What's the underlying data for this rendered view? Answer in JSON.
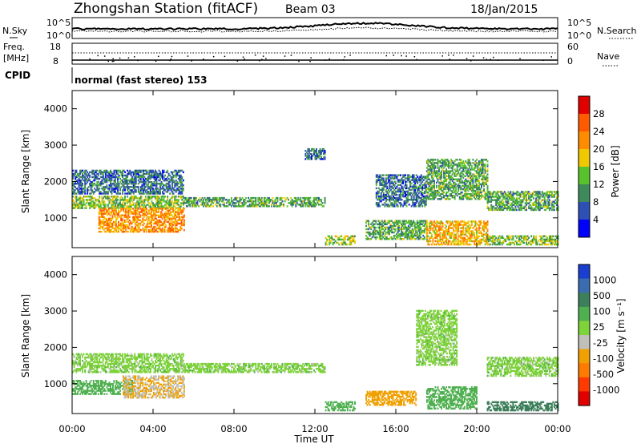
{
  "header": {
    "station": "Zhongshan Station (fitACF)",
    "beam": "Beam 03",
    "date": "18/Jan/2015",
    "cpid_label": "CPID",
    "cpid_value": "normal (fast stereo) 153"
  },
  "strip_labels": {
    "nsky": "N.Sky",
    "nsearch": "N.Search",
    "freq_1": "Freq.",
    "freq_2": "[MHz]",
    "nave": "Nave",
    "nsky_top": "10^5",
    "nsky_bottom": "10^0",
    "nsearch_top": "10^5",
    "nsearch_bottom": "10^0",
    "freq_top": "18",
    "freq_bottom": "8",
    "nave_top": "60",
    "nave_bottom": "0"
  },
  "x_axis": {
    "label": "Time UT",
    "ticks": [
      "00:00",
      "04:00",
      "08:00",
      "12:00",
      "16:00",
      "20:00",
      "00:00"
    ]
  },
  "y_axis": {
    "label": "Slant Range [km]",
    "ticks": [
      "1000",
      "2000",
      "3000",
      "4000"
    ]
  },
  "power_colorbar": {
    "label": "Power [dB]",
    "ticks": [
      "4",
      "8",
      "12",
      "16",
      "20",
      "24",
      "28"
    ],
    "colors": [
      "#0000ff",
      "#2e4fb4",
      "#3f8a5a",
      "#58c22c",
      "#f0c800",
      "#ff8c00",
      "#ff5a00",
      "#e00000"
    ]
  },
  "velocity_colorbar": {
    "label": "Velocity [m s⁻¹]",
    "ticks": [
      "1000",
      "500",
      "100",
      "25",
      "-25",
      "-100",
      "-500",
      "-1000"
    ],
    "colors": [
      "#1a3fd0",
      "#3a6cb0",
      "#3c7f5a",
      "#4fb050",
      "#7ed23a",
      "#c0c0b8",
      "#f0a000",
      "#ff7a00",
      "#ff3a00",
      "#e00000"
    ]
  },
  "chart_data": [
    {
      "type": "heatmap",
      "title": "Power [dB]",
      "xlabel": "Time UT",
      "ylabel": "Slant Range [km]",
      "xlim": [
        "00:00",
        "24:00"
      ],
      "ylim": [
        180,
        4500
      ],
      "bands": [
        {
          "t0": 0.0,
          "t1": 5.5,
          "r0": 1250,
          "r1": 1600,
          "level": 12
        },
        {
          "t0": 0.0,
          "t1": 5.5,
          "r0": 1650,
          "r1": 2300,
          "level": 6
        },
        {
          "t0": 1.3,
          "t1": 5.5,
          "r0": 600,
          "r1": 1250,
          "level": 20
        },
        {
          "t0": 5.5,
          "t1": 12.5,
          "r0": 1300,
          "r1": 1550,
          "level": 10
        },
        {
          "t0": 11.5,
          "t1": 12.5,
          "r0": 2600,
          "r1": 2900,
          "level": 6
        },
        {
          "t0": 12.5,
          "t1": 14.0,
          "r0": 250,
          "r1": 500,
          "level": 14
        },
        {
          "t0": 14.5,
          "t1": 17.5,
          "r0": 400,
          "r1": 900,
          "level": 10
        },
        {
          "t0": 15.0,
          "t1": 17.5,
          "r0": 1300,
          "r1": 2200,
          "level": 6
        },
        {
          "t0": 17.5,
          "t1": 20.5,
          "r0": 250,
          "r1": 900,
          "level": 18
        },
        {
          "t0": 17.5,
          "t1": 20.5,
          "r0": 1500,
          "r1": 2600,
          "level": 10
        },
        {
          "t0": 20.5,
          "t1": 24.0,
          "r0": 1200,
          "r1": 1700,
          "level": 10
        },
        {
          "t0": 20.5,
          "t1": 24.0,
          "r0": 250,
          "r1": 500,
          "level": 12
        }
      ]
    },
    {
      "type": "heatmap",
      "title": "Velocity [m s⁻¹]",
      "xlabel": "Time UT",
      "ylabel": "Slant Range [km]",
      "xlim": [
        "00:00",
        "24:00"
      ],
      "ylim": [
        180,
        4500
      ],
      "bands": [
        {
          "t0": 0.0,
          "t1": 5.5,
          "r0": 1300,
          "r1": 1800,
          "level": 0
        },
        {
          "t0": 0.0,
          "t1": 3.0,
          "r0": 700,
          "r1": 1100,
          "level": 60
        },
        {
          "t0": 2.5,
          "t1": 5.5,
          "r0": 600,
          "r1": 1200,
          "level": -100
        },
        {
          "t0": 5.5,
          "t1": 12.5,
          "r0": 1300,
          "r1": 1550,
          "level": 0
        },
        {
          "t0": 12.5,
          "t1": 14.0,
          "r0": 250,
          "r1": 500,
          "level": 60
        },
        {
          "t0": 14.5,
          "t1": 17.0,
          "r0": 400,
          "r1": 800,
          "level": -300
        },
        {
          "t0": 17.0,
          "t1": 19.0,
          "r0": 1500,
          "r1": 3000,
          "level": 0
        },
        {
          "t0": 17.5,
          "t1": 20.0,
          "r0": 300,
          "r1": 900,
          "level": 60
        },
        {
          "t0": 20.5,
          "t1": 24.0,
          "r0": 1200,
          "r1": 1700,
          "level": 0
        },
        {
          "t0": 20.5,
          "t1": 24.0,
          "r0": 250,
          "r1": 500,
          "level": 200
        }
      ]
    }
  ]
}
